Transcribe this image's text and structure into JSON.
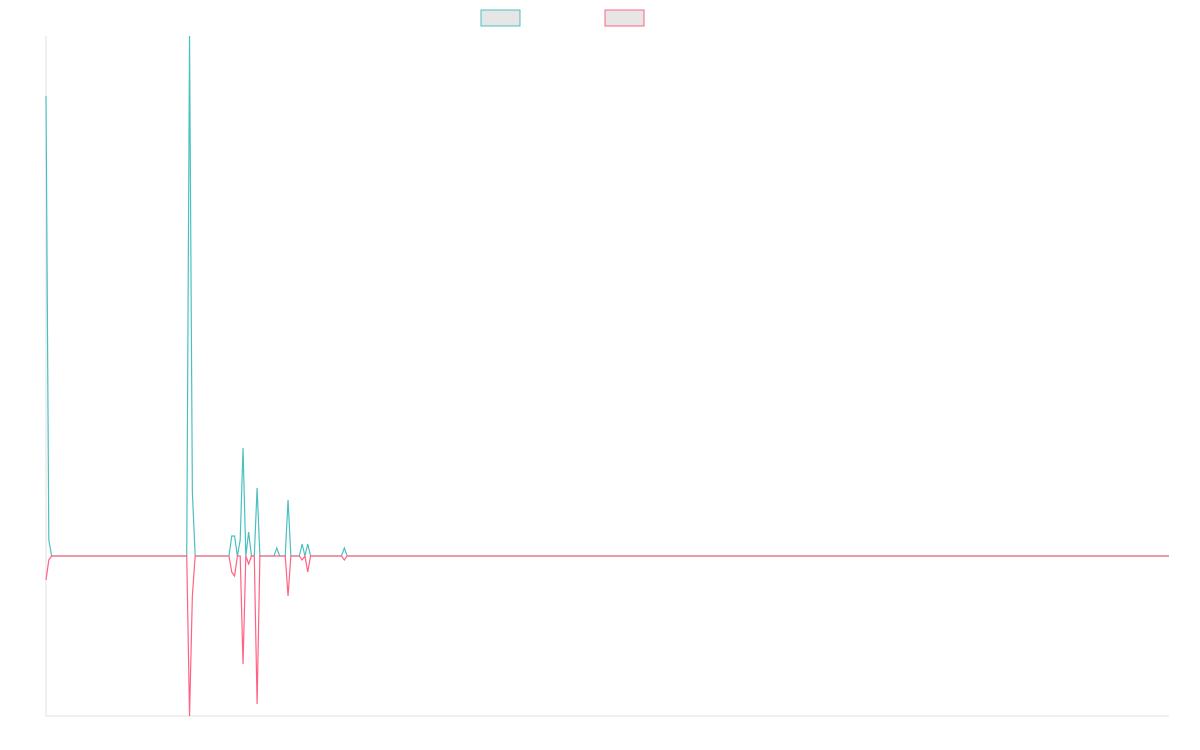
{
  "chart_data": {
    "type": "line",
    "title": "",
    "xlabel": "",
    "ylabel": "",
    "grid": false,
    "legend": "top-center",
    "ylim": [
      -40,
      130
    ],
    "n_points": 400,
    "series": [
      {
        "color": "#4BC0C0",
        "fill": "#E6E6E6",
        "values": {
          "0": 115,
          "1": 4,
          "2": 0,
          "50": 0,
          "51": 130,
          "52": 16,
          "53": 0,
          "65": 0,
          "66": 5,
          "67": 5,
          "68": 0,
          "69": 4,
          "70": 27,
          "71": 0,
          "72": 6,
          "73": 0,
          "74": 0,
          "75": 17,
          "76": 0,
          "81": 0,
          "82": 2,
          "83": 0,
          "84": 0,
          "85": 0,
          "86": 14,
          "87": 0,
          "90": 0,
          "91": 3,
          "92": 0,
          "93": 3,
          "94": 0,
          "105": 0,
          "106": 2,
          "107": 0
        }
      },
      {
        "color": "#FF6384",
        "fill": "#E6E6E6",
        "values": {
          "0": -6,
          "1": -1,
          "2": 0,
          "50": 0,
          "51": -40,
          "52": -10,
          "53": 0,
          "65": 0,
          "66": -4,
          "67": -5,
          "68": 0,
          "69": 0,
          "70": -27,
          "71": 0,
          "72": -2,
          "73": 0,
          "74": 0,
          "75": -37,
          "76": 0,
          "81": 0,
          "82": 0,
          "83": 0,
          "84": 0,
          "85": 0,
          "86": -10,
          "87": 0,
          "90": 0,
          "91": -1,
          "92": 0,
          "93": -4,
          "94": 0,
          "105": 0,
          "106": -1,
          "107": 0
        }
      }
    ]
  }
}
